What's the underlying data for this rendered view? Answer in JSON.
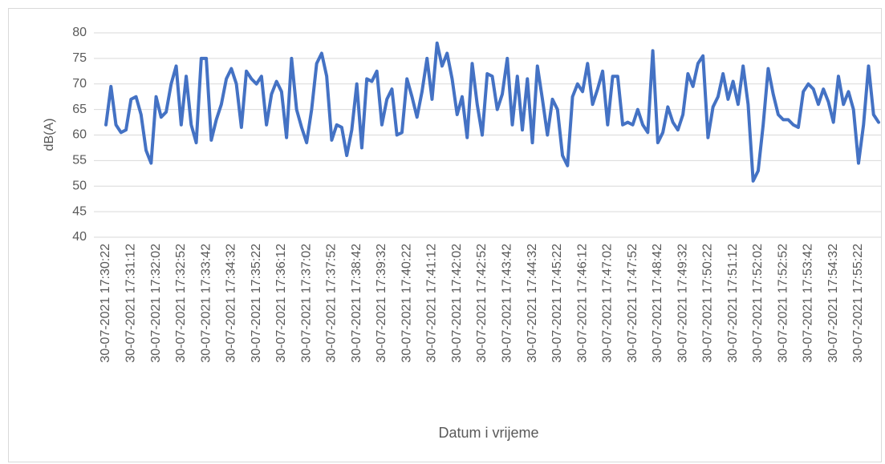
{
  "chart_data": {
    "type": "line",
    "x_label": "Datum i vrijeme",
    "y_label": "dB(A)",
    "color": "#4472c4",
    "grid": true,
    "ylim": [
      40,
      80
    ],
    "yticks": [
      40,
      45,
      50,
      55,
      60,
      65,
      70,
      75,
      80
    ],
    "categories": [
      "30-07-2021 17:30:22",
      null,
      null,
      null,
      null,
      "30-07-2021 17:31:12",
      null,
      null,
      null,
      null,
      "30-07-2021 17:32:02",
      null,
      null,
      null,
      null,
      "30-07-2021 17:32:52",
      null,
      null,
      null,
      null,
      "30-07-2021 17:33:42",
      null,
      null,
      null,
      null,
      "30-07-2021 17:34:32",
      null,
      null,
      null,
      null,
      "30-07-2021 17:35:22",
      null,
      null,
      null,
      null,
      "30-07-2021 17:36:12",
      null,
      null,
      null,
      null,
      "30-07-2021 17:37:02",
      null,
      null,
      null,
      null,
      "30-07-2021 17:37:52",
      null,
      null,
      null,
      null,
      "30-07-2021 17:38:42",
      null,
      null,
      null,
      null,
      "30-07-2021 17:39:32",
      null,
      null,
      null,
      null,
      "30-07-2021 17:40:22",
      null,
      null,
      null,
      null,
      "30-07-2021 17:41:12",
      null,
      null,
      null,
      null,
      "30-07-2021 17:42:02",
      null,
      null,
      null,
      null,
      "30-07-2021 17:42:52",
      null,
      null,
      null,
      null,
      "30-07-2021 17:43:42",
      null,
      null,
      null,
      null,
      "30-07-2021 17:44:32",
      null,
      null,
      null,
      null,
      "30-07-2021 17:45:22",
      null,
      null,
      null,
      null,
      "30-07-2021 17:46:12",
      null,
      null,
      null,
      null,
      "30-07-2021 17:47:02",
      null,
      null,
      null,
      null,
      "30-07-2021 17:47:52",
      null,
      null,
      null,
      null,
      "30-07-2021 17:48:42",
      null,
      null,
      null,
      null,
      "30-07-2021 17:49:32",
      null,
      null,
      null,
      null,
      "30-07-2021 17:50:22",
      null,
      null,
      null,
      null,
      "30-07-2021 17:51:12",
      null,
      null,
      null,
      null,
      "30-07-2021 17:52:02",
      null,
      null,
      null,
      null,
      "30-07-2021 17:52:52",
      null,
      null,
      null,
      null,
      "30-07-2021 17:53:42",
      null,
      null,
      null,
      null,
      "30-07-2021 17:54:32",
      null,
      null,
      null,
      null,
      "30-07-2021 17:55:22",
      null,
      null,
      null,
      null
    ],
    "values": [
      62,
      69.5,
      62,
      60.5,
      61,
      67,
      67.5,
      64,
      57,
      54.5,
      67.5,
      63.5,
      64.5,
      70,
      73.5,
      62,
      71.5,
      62,
      58.5,
      75,
      75,
      59,
      63,
      66,
      71,
      73,
      70,
      61.5,
      72.5,
      71,
      70,
      71.5,
      62,
      68,
      70.5,
      68.5,
      59.5,
      75,
      65,
      61.5,
      58.5,
      65,
      74,
      76,
      71.5,
      59,
      62,
      61.5,
      56,
      61,
      70,
      57.5,
      71,
      70.5,
      72.5,
      62,
      67,
      69,
      60,
      60.5,
      71,
      67.5,
      63.5,
      68.5,
      75,
      67,
      78,
      73.5,
      76,
      71,
      64,
      67.5,
      59.5,
      74,
      66,
      60,
      72,
      71.5,
      65,
      68,
      75,
      62,
      71.5,
      61,
      71,
      58.5,
      73.5,
      67,
      60,
      67,
      65,
      56,
      54,
      67.5,
      70,
      68.5,
      74,
      66,
      69,
      72.5,
      62,
      71.5,
      71.5,
      62,
      62.5,
      62,
      65,
      62,
      60.5,
      76.5,
      58.5,
      60.5,
      65.5,
      62.5,
      61,
      64,
      72,
      69.5,
      74,
      75.5,
      59.5,
      65.5,
      67.5,
      72,
      67,
      70.5,
      66,
      73.5,
      66,
      51,
      53,
      62,
      73,
      68,
      64,
      63,
      63,
      62,
      61.5,
      68.5,
      70,
      69,
      66,
      69,
      66.5,
      62.5,
      71.5,
      66,
      68.5,
      65,
      54.5,
      62,
      73.5,
      64,
      62.5
    ]
  }
}
